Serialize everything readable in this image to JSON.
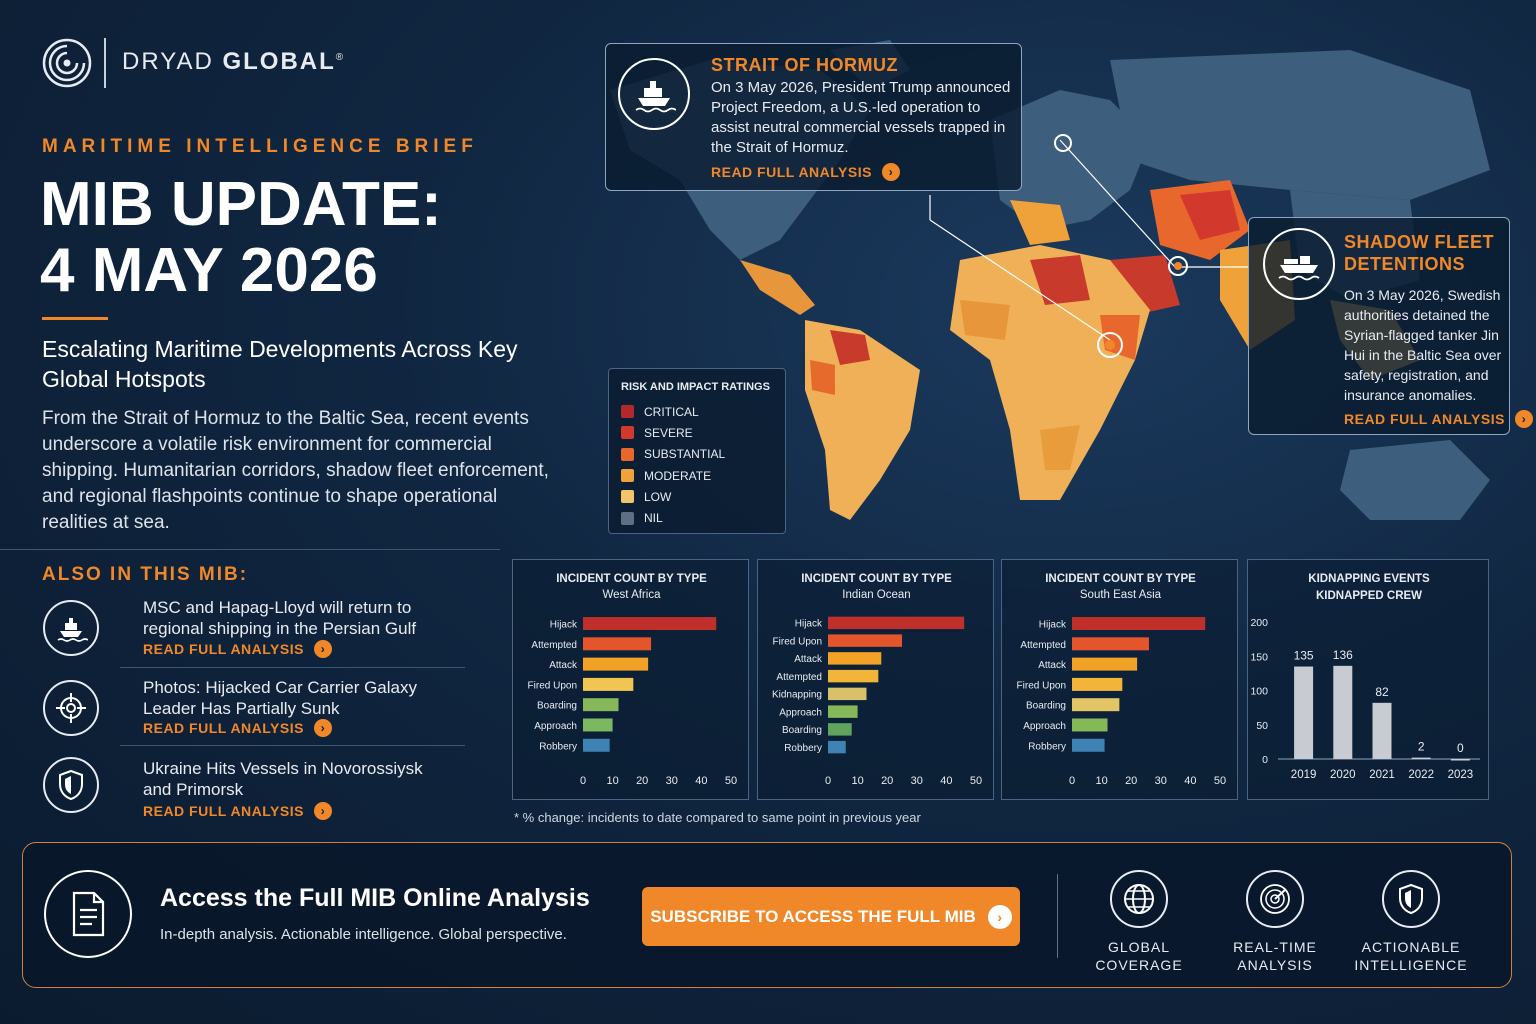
{
  "brand": {
    "name_light": "DRYAD ",
    "name_bold": "GLOBAL",
    "reg": "®"
  },
  "header": {
    "kicker": "MARITIME INTELLIGENCE BRIEF",
    "title_line1": "MIB UPDATE:",
    "title_line2": "4 MAY 2026",
    "subtitle": "Escalating Maritime Developments Across Key Global Hotspots",
    "lead": "From the Strait of Hormuz to the Baltic Sea, recent events underscore a volatile risk environment for commercial shipping. Humanitarian corridors, shadow fleet enforcement, and regional flashpoints continue to shape operational realities at sea."
  },
  "also_in": {
    "title": "ALSO IN THIS MIB:",
    "items": [
      {
        "text": "MSC and Hapag-Lloyd will return to regional shipping in the Persian Gulf",
        "link": "READ FULL ANALYSIS",
        "icon": "ship-icon"
      },
      {
        "text": "Photos: Hijacked Car Carrier Galaxy Leader Has Partially Sunk",
        "link": "READ FULL ANALYSIS",
        "icon": "crosshair-icon"
      },
      {
        "text": "Ukraine Hits Vessels in Novorossiysk and Primorsk",
        "link": "READ FULL ANALYSIS",
        "icon": "shield-icon"
      }
    ]
  },
  "callouts": {
    "hormuz": {
      "title": "STRAIT OF HORMUZ",
      "body": "On 3 May 2026, President Trump announced Project Freedom, a U.S.-led operation to assist neutral commercial vessels trapped in the Strait of Hormuz.",
      "link": "READ FULL ANALYSIS"
    },
    "shadow": {
      "title": "SHADOW FLEET DETENTIONS",
      "body": "On 3 May 2026, Swedish authorities detained the Syrian-flagged tanker Jin Hui in the Baltic Sea over safety, registration, and insurance anomalies.",
      "link": "READ FULL ANALYSIS"
    }
  },
  "legend": {
    "title": "RISK AND IMPACT RATINGS",
    "items": [
      {
        "label": "CRITICAL",
        "color": "#b3282d"
      },
      {
        "label": "SEVERE",
        "color": "#d2382b"
      },
      {
        "label": "SUBSTANTIAL",
        "color": "#e8672c"
      },
      {
        "label": "MODERATE",
        "color": "#f0a23a"
      },
      {
        "label": "LOW",
        "color": "#f4c46a"
      },
      {
        "label": "NIL",
        "color": "#5d6f82"
      }
    ]
  },
  "chart_data": [
    {
      "type": "bar",
      "title": "INCIDENT COUNT BY TYPE",
      "subtitle": "West Africa",
      "categories": [
        "Hijack",
        "Attempted",
        "Attack",
        "Fired Upon",
        "Boarding",
        "Approach",
        "Robbery"
      ],
      "values": [
        45,
        23,
        22,
        17,
        12,
        10,
        9
      ],
      "xlim": [
        0,
        50
      ],
      "ticks": [
        0,
        10,
        20,
        30,
        40,
        50
      ],
      "colors": [
        "#c0302b",
        "#e5552c",
        "#f2a227",
        "#f1c552",
        "#86b85a",
        "#7cb860",
        "#3f83b4"
      ]
    },
    {
      "type": "bar",
      "title": "INCIDENT COUNT BY TYPE",
      "subtitle": "Indian Ocean",
      "categories": [
        "Hijack",
        "Fired Upon",
        "Attack",
        "Attempted",
        "Kidnapping",
        "Approach",
        "Boarding",
        "Robbery"
      ],
      "values": [
        46,
        25,
        18,
        17,
        13,
        10,
        8,
        6
      ],
      "xlim": [
        0,
        50
      ],
      "ticks": [
        0,
        10,
        20,
        30,
        40,
        50
      ],
      "colors": [
        "#c0302b",
        "#e5552c",
        "#f2a227",
        "#f2b53a",
        "#d9c06a",
        "#86b85a",
        "#5fa35e",
        "#3f83b4"
      ]
    },
    {
      "type": "bar",
      "title": "INCIDENT COUNT BY TYPE",
      "subtitle": "South East Asia",
      "categories": [
        "Hijack",
        "Attempted",
        "Attack",
        "Fired Upon",
        "Boarding",
        "Approach",
        "Robbery"
      ],
      "values": [
        45,
        26,
        22,
        17,
        16,
        12,
        11
      ],
      "xlim": [
        0,
        50
      ],
      "ticks": [
        0,
        10,
        20,
        30,
        40,
        50
      ],
      "colors": [
        "#c0302b",
        "#e5552c",
        "#f2a227",
        "#f2b53a",
        "#e2c564",
        "#86b85a",
        "#3f83b4"
      ]
    },
    {
      "type": "bar",
      "title": "KIDNAPPING EVENTS",
      "subtitle": "KIDNAPPED CREW",
      "categories": [
        "2019",
        "2020",
        "2021",
        "2022",
        "2023"
      ],
      "values": [
        135,
        136,
        82,
        2,
        0
      ],
      "ylim": [
        0,
        200
      ],
      "ticks": [
        0,
        50,
        100,
        150,
        200
      ],
      "colors": [
        "#c8ccd2"
      ]
    }
  ],
  "note": "* % change: incidents to date compared to same point in previous year",
  "footer": {
    "title": "Access the Full MIB Online Analysis",
    "subtitle": "In-depth analysis. Actionable intelligence. Global perspective.",
    "button": "SUBSCRIBE TO ACCESS THE FULL MIB",
    "features": [
      {
        "line1": "GLOBAL",
        "line2": "COVERAGE",
        "icon": "globe-icon"
      },
      {
        "line1": "REAL-TIME",
        "line2": "ANALYSIS",
        "icon": "radar-icon"
      },
      {
        "line1": "ACTIONABLE",
        "line2": "INTELLIGENCE",
        "icon": "shield-icon"
      }
    ]
  }
}
